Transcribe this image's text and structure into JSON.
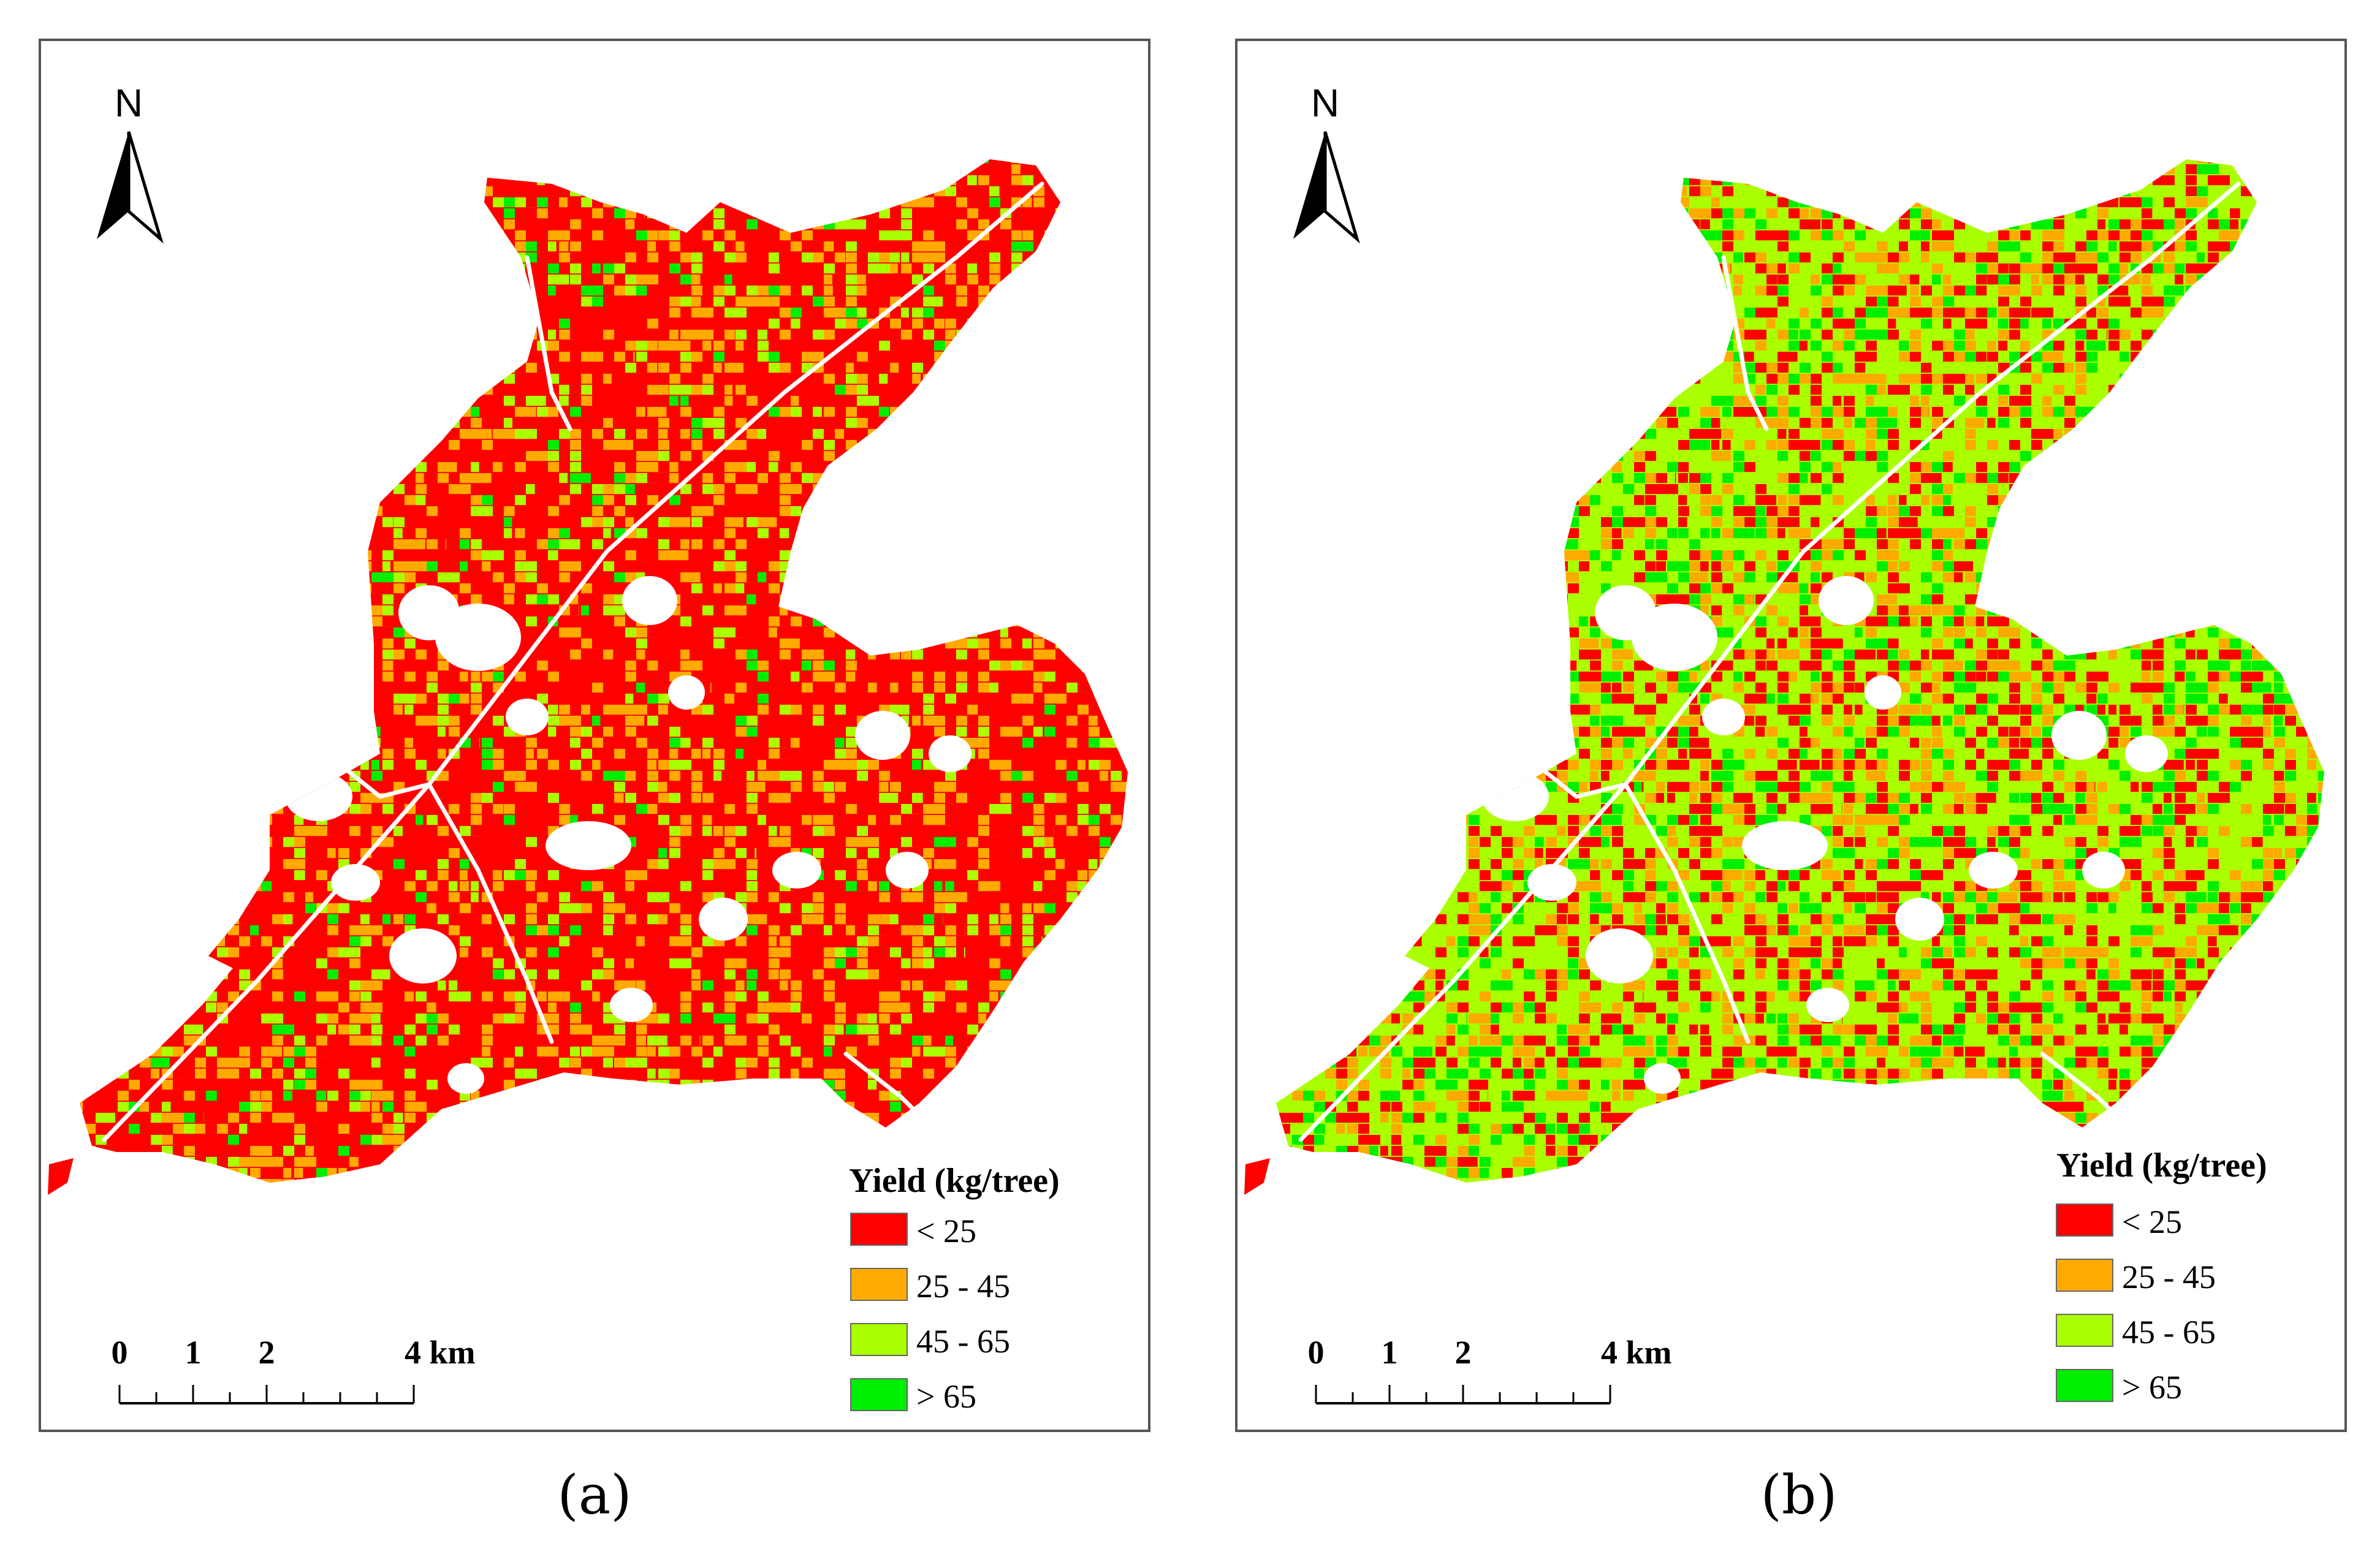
{
  "panels": [
    {
      "id": "a",
      "caption": "(a)",
      "north_label": "N",
      "legend_title": "Yield (kg/tree)",
      "legend_items": [
        {
          "label": "< 25",
          "color": "#ff0000"
        },
        {
          "label": "25 - 45",
          "color": "#ffaa00"
        },
        {
          "label": "45 - 65",
          "color": "#aaff00"
        },
        {
          "label": "> 65",
          "color": "#00ee00"
        }
      ],
      "scale_labels": [
        "0",
        "1",
        "2",
        "4 km"
      ],
      "class_shares": [
        0.62,
        0.22,
        0.12,
        0.04
      ]
    },
    {
      "id": "b",
      "caption": "(b)",
      "north_label": "N",
      "legend_title": "Yield (kg/tree)",
      "legend_items": [
        {
          "label": "< 25",
          "color": "#ff0000"
        },
        {
          "label": "25 - 45",
          "color": "#ffaa00"
        },
        {
          "label": "45 - 65",
          "color": "#aaff00"
        },
        {
          "label": "> 65",
          "color": "#00ee00"
        }
      ],
      "scale_labels": [
        "0",
        "1",
        "2",
        "4 km"
      ],
      "class_shares": [
        0.25,
        0.18,
        0.42,
        0.15
      ]
    }
  ]
}
